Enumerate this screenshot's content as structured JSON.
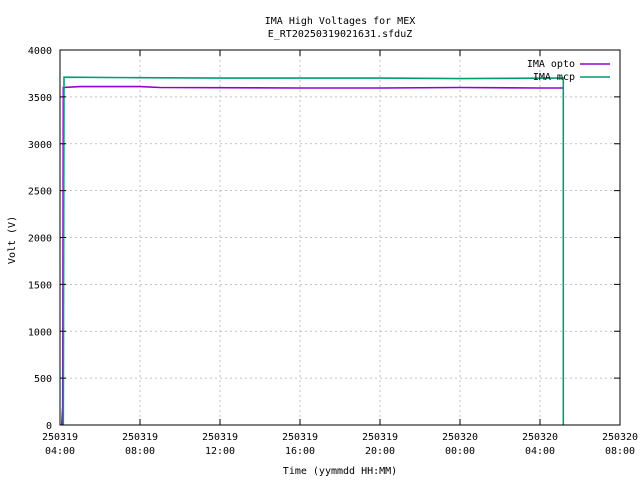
{
  "chart_data": {
    "type": "line",
    "title": "IMA High Voltages for MEX",
    "subtitle": "E_RT20250319021631.sfduZ",
    "xlabel": "Time (yymmdd HH:MM)",
    "ylabel": "Volt (V)",
    "xlim": [
      "2025-03-19 04:00",
      "2025-03-20 08:00"
    ],
    "ylim": [
      0,
      4000
    ],
    "grid": true,
    "legend_position": "top-right",
    "x_ticks": [
      {
        "date": "250319",
        "time": "04:00"
      },
      {
        "date": "250319",
        "time": "08:00"
      },
      {
        "date": "250319",
        "time": "12:00"
      },
      {
        "date": "250319",
        "time": "16:00"
      },
      {
        "date": "250319",
        "time": "20:00"
      },
      {
        "date": "250320",
        "time": "00:00"
      },
      {
        "date": "250320",
        "time": "04:00"
      },
      {
        "date": "250320",
        "time": "08:00"
      }
    ],
    "y_ticks": [
      "0",
      "500",
      "1000",
      "1500",
      "2000",
      "2500",
      "3000",
      "3500",
      "4000"
    ],
    "series": [
      {
        "name": "IMA opto",
        "color": "#9400d3",
        "points": [
          [
            "2025-03-19 04:05",
            0
          ],
          [
            "2025-03-19 04:08",
            200
          ],
          [
            "2025-03-19 04:10",
            3600
          ],
          [
            "2025-03-19 05:00",
            3610
          ],
          [
            "2025-03-19 08:00",
            3610
          ],
          [
            "2025-03-19 09:00",
            3600
          ],
          [
            "2025-03-19 16:00",
            3595
          ],
          [
            "2025-03-19 20:00",
            3595
          ],
          [
            "2025-03-20 00:00",
            3600
          ],
          [
            "2025-03-20 04:00",
            3595
          ],
          [
            "2025-03-20 05:10",
            3595
          ]
        ]
      },
      {
        "name": "IMA mcp",
        "color": "#009e73",
        "points": [
          [
            "2025-03-19 04:10",
            0
          ],
          [
            "2025-03-19 04:12",
            3710
          ],
          [
            "2025-03-19 08:00",
            3705
          ],
          [
            "2025-03-19 12:00",
            3700
          ],
          [
            "2025-03-19 16:00",
            3700
          ],
          [
            "2025-03-19 20:00",
            3700
          ],
          [
            "2025-03-20 00:00",
            3695
          ],
          [
            "2025-03-20 05:00",
            3700
          ],
          [
            "2025-03-20 05:10",
            3700
          ],
          [
            "2025-03-20 05:10",
            0
          ]
        ]
      }
    ]
  }
}
